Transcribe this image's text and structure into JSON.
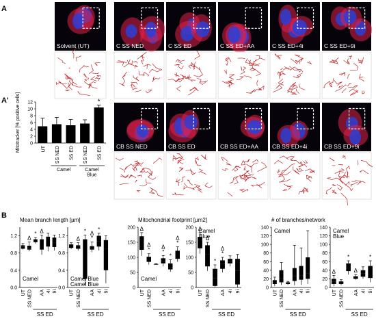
{
  "panel_labels": {
    "A": "A",
    "A_prime": "A'",
    "B": "B"
  },
  "row_A_images": [
    {
      "label": "Solvent (UT)",
      "inset": true
    },
    {
      "label": "C SS NED",
      "inset": true
    },
    {
      "label": "C SS ED",
      "inset": true
    },
    {
      "label": "C SS ED+AA",
      "inset": true
    },
    {
      "label": "C SS ED+4i",
      "inset": true
    },
    {
      "label": "C SS ED+9i",
      "inset": true
    }
  ],
  "row_Aprime_images": [
    {
      "label": "CB SS NED",
      "inset": true
    },
    {
      "label": "CB SS ED",
      "inset": true
    },
    {
      "label": "CB SS ED+AA",
      "inset": true
    },
    {
      "label": "CB SS ED+4i",
      "inset": true
    },
    {
      "label": "CB SS ED+9i",
      "inset": true
    }
  ],
  "colors": {
    "nucleus": "#2b3fd6",
    "mito": "#e0204a",
    "skeleton": "#c0282c",
    "bar": "#000000"
  },
  "chart_data": [
    {
      "id": "mitotracker",
      "type": "bar",
      "ylabel": "Mitotracker [% positive cells]",
      "ylim": [
        0,
        12
      ],
      "yticks": [
        "0",
        "2",
        "4",
        "6",
        "8",
        "10",
        "12"
      ],
      "categories": [
        "UT",
        "SS NED",
        "SS ED",
        "SS NED",
        "SS ED"
      ],
      "values": [
        4.9,
        5.5,
        5.2,
        5.7,
        10.4
      ],
      "errors": [
        2.4,
        2.0,
        1.7,
        1.1,
        0.7
      ],
      "significance": [
        "",
        "",
        "",
        "",
        "*"
      ],
      "groups": [
        {
          "label": "Camel",
          "from": 1,
          "to": 2
        },
        {
          "label": "Camel Blue",
          "from": 3,
          "to": 4
        }
      ]
    },
    {
      "id": "branch_length_camel",
      "type": "box",
      "title": "Mean branch length [µm]",
      "ylim": [
        0.0,
        1.4
      ],
      "yticks": [
        "0.0",
        "0.4",
        "0.8",
        "1.2"
      ],
      "panel_label": "Camel",
      "boxes": [
        {
          "q1": 0.9,
          "med": 0.95,
          "q3": 0.98,
          "lo": 0.88,
          "hi": 1.02,
          "mark": ""
        },
        {
          "q1": 0.88,
          "med": 0.92,
          "q3": 0.97,
          "lo": 0.84,
          "hi": 1.06,
          "mark": "Δ"
        },
        {
          "q1": 1.05,
          "med": 1.08,
          "q3": 1.12,
          "lo": 1.02,
          "hi": 1.16,
          "mark": "*"
        },
        {
          "q1": 0.88,
          "med": 0.97,
          "q3": 1.12,
          "lo": 0.76,
          "hi": 1.22,
          "mark": "Δ"
        },
        {
          "q1": 0.95,
          "med": 1.05,
          "q3": 1.18,
          "lo": 0.84,
          "hi": 1.26,
          "mark": ""
        },
        {
          "q1": 0.94,
          "med": 1.04,
          "q3": 1.16,
          "lo": 0.86,
          "hi": 1.22,
          "mark": ""
        }
      ]
    },
    {
      "id": "branch_length_camelblue",
      "type": "box",
      "ylim": [
        0.0,
        1.4
      ],
      "yticks": [
        "0.0",
        "0.4",
        "0.8",
        "1.2"
      ],
      "panel_label": "Camel Blue",
      "boxes": [
        {
          "q1": 0.92,
          "med": 0.97,
          "q3": 1.0,
          "lo": 0.89,
          "hi": 1.04,
          "mark": ""
        },
        {
          "q1": 0.9,
          "med": 0.94,
          "q3": 0.98,
          "lo": 0.86,
          "hi": 1.04,
          "mark": "Δ"
        },
        {
          "q1": 0.2,
          "med": 0.7,
          "q3": 1.12,
          "lo": 0.05,
          "hi": 1.22,
          "mark": "*"
        },
        {
          "q1": 0.88,
          "med": 0.92,
          "q3": 0.96,
          "lo": 0.82,
          "hi": 1.06,
          "mark": "Δ*"
        },
        {
          "q1": 0.95,
          "med": 1.08,
          "q3": 1.2,
          "lo": 0.86,
          "hi": 1.26,
          "mark": "*"
        },
        {
          "q1": 0.4,
          "med": 0.9,
          "q3": 1.1,
          "lo": 0.1,
          "hi": 1.2,
          "mark": ""
        }
      ]
    },
    {
      "id": "footprint_camel",
      "type": "box",
      "title": "Mitochondrial footprint [µm2]",
      "ylim": [
        0,
        200
      ],
      "yticks": [
        "0",
        "50",
        "100",
        "150",
        "200"
      ],
      "panel_label": "Camel",
      "boxes": [
        {
          "q1": 125,
          "med": 150,
          "q3": 170,
          "lo": 105,
          "hi": 182,
          "mark": "Δ"
        },
        {
          "q1": 85,
          "med": 92,
          "q3": 102,
          "lo": 76,
          "hi": 112,
          "mark": "Δ*"
        },
        {
          "q1": 76,
          "med": 77,
          "q3": 78,
          "lo": 76,
          "hi": 79,
          "mark": ""
        },
        {
          "q1": 80,
          "med": 88,
          "q3": 97,
          "lo": 70,
          "hi": 106,
          "mark": "Δ*"
        },
        {
          "q1": 60,
          "med": 68,
          "q3": 80,
          "lo": 52,
          "hi": 92,
          "mark": "*"
        },
        {
          "q1": 95,
          "med": 108,
          "q3": 122,
          "lo": 85,
          "hi": 135,
          "mark": "Δ*"
        }
      ]
    },
    {
      "id": "footprint_camelblue",
      "type": "box",
      "ylim": [
        0,
        200
      ],
      "yticks": [
        "0",
        "50",
        "100",
        "150",
        "200"
      ],
      "panel_label": "Camel Blue",
      "boxes": [
        {
          "q1": 130,
          "med": 150,
          "q3": 168,
          "lo": 112,
          "hi": 182,
          "mark": "Δ"
        },
        {
          "q1": 70,
          "med": 110,
          "q3": 140,
          "lo": 55,
          "hi": 150,
          "mark": "Δ"
        },
        {
          "q1": 5,
          "med": 30,
          "q3": 62,
          "lo": 0,
          "hi": 75,
          "mark": "*"
        },
        {
          "q1": 62,
          "med": 78,
          "q3": 90,
          "lo": 50,
          "hi": 100,
          "mark": "Δ*"
        },
        {
          "q1": 80,
          "med": 88,
          "q3": 95,
          "lo": 70,
          "hi": 105,
          "mark": ""
        },
        {
          "q1": 10,
          "med": 55,
          "q3": 95,
          "lo": 0,
          "hi": 110,
          "mark": ""
        }
      ]
    },
    {
      "id": "branches_camel",
      "type": "box",
      "title": "# of branches/network",
      "ylim": [
        0,
        140
      ],
      "yticks": [
        "0",
        "20",
        "40",
        "60",
        "80",
        "100",
        "120",
        "140"
      ],
      "panel_label": "Camel",
      "boxes": [
        {
          "q1": 8,
          "med": 12,
          "q3": 17,
          "lo": 3,
          "hi": 24,
          "mark": ""
        },
        {
          "q1": 12,
          "med": 22,
          "q3": 40,
          "lo": 6,
          "hi": 58,
          "mark": ""
        },
        {
          "q1": 8,
          "med": 10,
          "q3": 12,
          "lo": 6,
          "hi": 14,
          "mark": ""
        },
        {
          "q1": 15,
          "med": 26,
          "q3": 45,
          "lo": 5,
          "hi": 98,
          "mark": ""
        },
        {
          "q1": 18,
          "med": 28,
          "q3": 50,
          "lo": 6,
          "hi": 92,
          "mark": ""
        },
        {
          "q1": 20,
          "med": 32,
          "q3": 70,
          "lo": 8,
          "hi": 132,
          "mark": ""
        }
      ]
    },
    {
      "id": "branches_camelblue",
      "type": "box",
      "ylim": [
        0,
        140
      ],
      "yticks": [
        "0",
        "20",
        "40",
        "60",
        "80",
        "100",
        "120",
        "140"
      ],
      "panel_label": "Camel Blue",
      "boxes": [
        {
          "q1": 8,
          "med": 14,
          "q3": 20,
          "lo": 3,
          "hi": 28,
          "mark": "Δ"
        },
        {
          "q1": 8,
          "med": 11,
          "q3": 14,
          "lo": 5,
          "hi": 18,
          "mark": ""
        },
        {
          "q1": 38,
          "med": 46,
          "q3": 56,
          "lo": 30,
          "hi": 62,
          "mark": "*"
        },
        {
          "q1": 20,
          "med": 23,
          "q3": 26,
          "lo": 18,
          "hi": 30,
          "mark": "Δ"
        },
        {
          "q1": 25,
          "med": 32,
          "q3": 40,
          "lo": 20,
          "hi": 48,
          "mark": ""
        },
        {
          "q1": 22,
          "med": 35,
          "q3": 50,
          "lo": 12,
          "hi": 62,
          "mark": "*"
        }
      ]
    }
  ],
  "box_axis": {
    "labels": [
      "UT",
      "SS NED",
      "",
      "AA",
      "4i",
      "9i"
    ],
    "group_label": "SS ED"
  }
}
